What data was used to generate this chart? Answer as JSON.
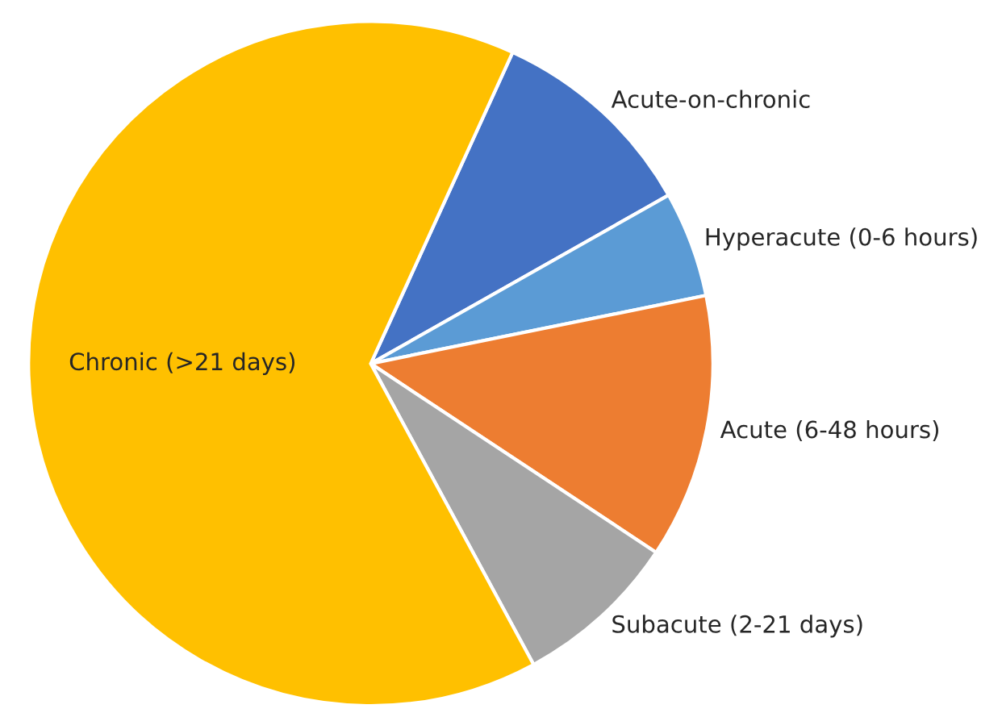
{
  "chart_data": {
    "type": "pie",
    "categories": [
      "Acute-on-chronic",
      "Hyperacute (0-6 hours)",
      "Acute (6-48 hours)",
      "Subacute (2-21 days)",
      "Chronic (>21 days)"
    ],
    "values": [
      10,
      5,
      12.5,
      7.8,
      64.7
    ],
    "colors": [
      "#4472c4",
      "#5b9bd5",
      "#ed7d31",
      "#a5a5a5",
      "#ffc000"
    ]
  }
}
